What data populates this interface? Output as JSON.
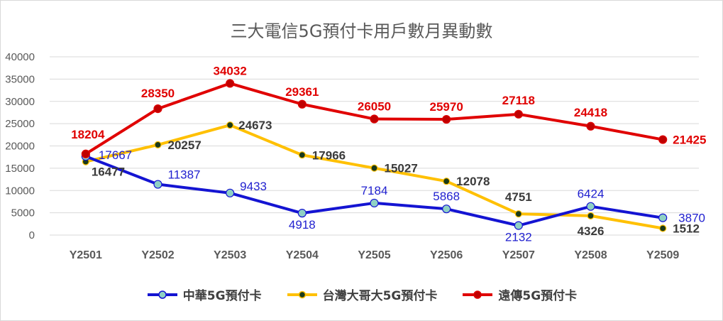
{
  "chart_data": {
    "type": "line",
    "title": "三大電信5G預付卡用戶數月異動數",
    "categories": [
      "Y2501",
      "Y2502",
      "Y2503",
      "Y2504",
      "Y2505",
      "Y2506",
      "Y2507",
      "Y2508",
      "Y2509"
    ],
    "ylim": [
      0,
      40000
    ],
    "yticks": [
      "0",
      "5000",
      "10000",
      "15000",
      "20000",
      "25000",
      "30000",
      "35000",
      "40000"
    ],
    "grid": true,
    "legend_position": "bottom",
    "series": [
      {
        "name": "中華5G預付卡",
        "color": "#1414d2",
        "marker_color": "#8fd1c4",
        "values": [
          17667,
          11387,
          9433,
          4918,
          7184,
          5868,
          2132,
          6424,
          3870
        ],
        "labels": [
          "17667",
          "11387",
          "9433",
          "4918",
          "7184",
          "5868",
          "2132",
          "6424",
          "3870"
        ]
      },
      {
        "name": "台灣大哥大5G預付卡",
        "color": "#ffc000",
        "marker_color": "#1a3a1a",
        "values": [
          16477,
          20257,
          24673,
          17966,
          15027,
          12078,
          4751,
          4326,
          1512
        ],
        "labels": [
          "16477",
          "20257",
          "24673",
          "17966",
          "15027",
          "12078",
          "4751",
          "4326",
          "1512"
        ]
      },
      {
        "name": "遠傳5G預付卡",
        "color": "#e00000",
        "marker_color": "#c00000",
        "values": [
          18204,
          28350,
          34032,
          29361,
          26050,
          25970,
          27118,
          24418,
          21425
        ],
        "labels": [
          "18204",
          "28350",
          "34032",
          "29361",
          "26050",
          "25970",
          "27118",
          "24418",
          "21425"
        ]
      }
    ]
  }
}
